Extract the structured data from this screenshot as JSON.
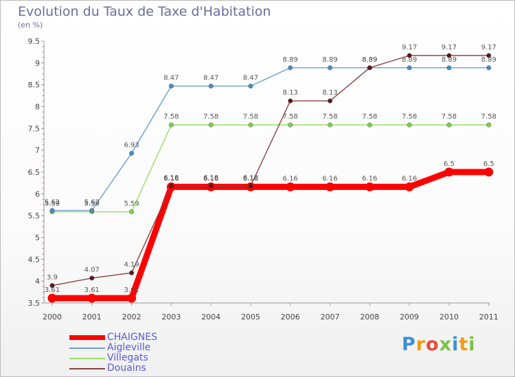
{
  "title": "Evolution du Taux de Taxe d'Habitation",
  "subtitle": "(en %)",
  "logo": {
    "text": "Proxiti"
  },
  "chart_data": {
    "type": "line",
    "x": [
      "2000",
      "2001",
      "2002",
      "2003",
      "2004",
      "2005",
      "2006",
      "2007",
      "2008",
      "2009",
      "2010",
      "2011"
    ],
    "ylim": [
      3.5,
      9.5
    ],
    "yticks": [
      "3.5",
      "4",
      "4.5",
      "5",
      "5.5",
      "6",
      "6.5",
      "7",
      "7.5",
      "8",
      "8.5",
      "9",
      "9.5"
    ],
    "grid": false,
    "legend_position": "bottom-left",
    "series": [
      {
        "name": "CHAIGNES",
        "color": "#ff0000",
        "values": [
          3.61,
          3.61,
          3.61,
          6.16,
          6.16,
          6.16,
          6.16,
          6.16,
          6.16,
          6.16,
          6.5,
          6.5
        ]
      },
      {
        "name": "Aigleville",
        "color": "#6a9ed0",
        "values": [
          5.62,
          5.62,
          6.93,
          8.47,
          8.47,
          8.47,
          8.89,
          8.89,
          8.89,
          8.89,
          8.89,
          8.89
        ]
      },
      {
        "name": "Villegats",
        "color": "#99dd66",
        "values": [
          5.59,
          5.59,
          5.59,
          7.58,
          7.58,
          7.58,
          7.58,
          7.58,
          7.58,
          7.58,
          7.58,
          7.58
        ]
      },
      {
        "name": "Douains",
        "color": "#8b4040",
        "values": [
          3.9,
          4.07,
          4.19,
          6.18,
          6.18,
          6.18,
          8.13,
          8.13,
          8.89,
          9.17,
          9.17,
          9.17
        ]
      }
    ],
    "data_labels": [
      [
        "3.61",
        "3.61",
        "3.61",
        "6.16",
        "6.16",
        "6.16",
        "6.16",
        "6.16",
        "6.16",
        "6.16",
        "6.5",
        "6.5"
      ],
      [
        "5.62",
        "5.62",
        "6.93",
        "8.47",
        "8.47",
        "8.47",
        "8.89",
        "8.89",
        "8.89",
        "8.89",
        "8.89",
        "8.89"
      ],
      [
        "5.59",
        "5.59",
        "5.59",
        "7.58",
        "7.58",
        "7.58",
        "7.58",
        "7.58",
        "7.58",
        "7.58",
        "7.58",
        "7.58"
      ],
      [
        "3.9",
        "4.07",
        "4.19",
        "6.18",
        "6.18",
        "6.18",
        "8.13",
        "8.13",
        "8.89",
        "9.17",
        "9.17",
        "9.17"
      ]
    ]
  }
}
